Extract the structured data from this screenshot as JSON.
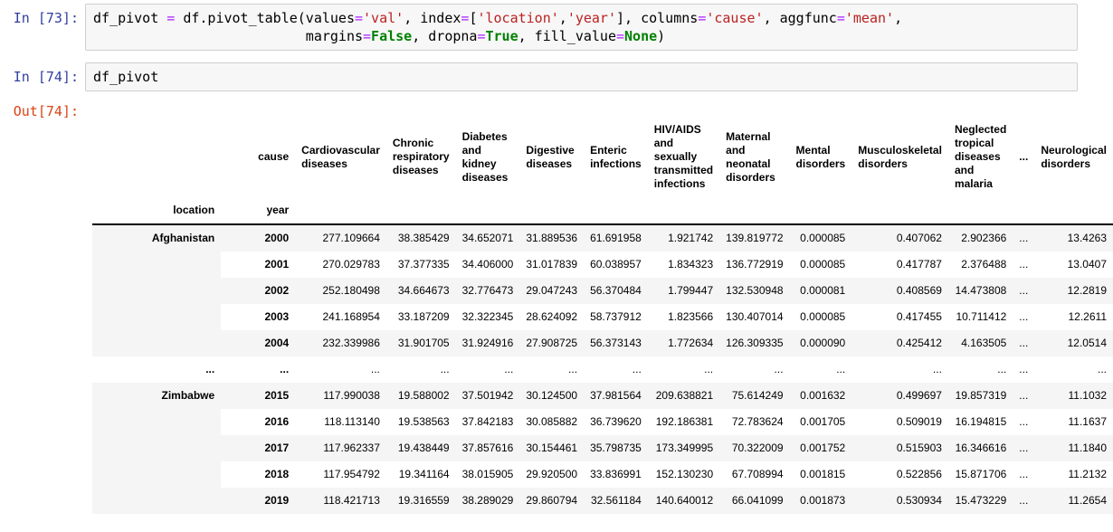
{
  "cells": {
    "in73": {
      "prompt": "In [73]:",
      "lines": [
        [
          {
            "text": "df_pivot ",
            "style": "plain"
          },
          {
            "text": "=",
            "style": "op"
          },
          {
            "text": " df.pivot_table(values",
            "style": "plain"
          },
          {
            "text": "=",
            "style": "op"
          },
          {
            "text": "'val'",
            "style": "str"
          },
          {
            "text": ", index",
            "style": "plain"
          },
          {
            "text": "=",
            "style": "op"
          },
          {
            "text": "[",
            "style": "plain"
          },
          {
            "text": "'location'",
            "style": "str"
          },
          {
            "text": ",",
            "style": "plain"
          },
          {
            "text": "'year'",
            "style": "str"
          },
          {
            "text": "], columns",
            "style": "plain"
          },
          {
            "text": "=",
            "style": "op"
          },
          {
            "text": "'cause'",
            "style": "str"
          },
          {
            "text": ", aggfunc",
            "style": "plain"
          },
          {
            "text": "=",
            "style": "op"
          },
          {
            "text": "'mean'",
            "style": "str"
          },
          {
            "text": ",",
            "style": "plain"
          }
        ],
        [
          {
            "text": "                          margins",
            "style": "plain"
          },
          {
            "text": "=",
            "style": "op"
          },
          {
            "text": "False",
            "style": "kw"
          },
          {
            "text": ", dropna",
            "style": "plain"
          },
          {
            "text": "=",
            "style": "op"
          },
          {
            "text": "True",
            "style": "kw"
          },
          {
            "text": ", fill_value",
            "style": "plain"
          },
          {
            "text": "=",
            "style": "op"
          },
          {
            "text": "None",
            "style": "kw"
          },
          {
            "text": ")",
            "style": "plain"
          }
        ]
      ]
    },
    "in74": {
      "prompt": "In [74]:",
      "lines": [
        [
          {
            "text": "df_pivot",
            "style": "plain"
          }
        ]
      ]
    },
    "out74": {
      "prompt": "Out[74]:"
    }
  },
  "table": {
    "columns_axis_name": "cause",
    "index_names": [
      "location",
      "year"
    ],
    "columns": [
      "Cardiovascular diseases",
      "Chronic respiratory diseases",
      "Diabetes and kidney diseases",
      "Digestive diseases",
      "Enteric infections",
      "HIV/AIDS and sexually transmitted infections",
      "Maternal and neonatal disorders",
      "Mental disorders",
      "Musculoskeletal disorders",
      "Neglected tropical diseases and malaria",
      "...",
      "Neurological disorders"
    ],
    "row_groups": [
      {
        "location": "Afghanistan",
        "rows": [
          {
            "year": "2000",
            "values": [
              "277.109664",
              "38.385429",
              "34.652071",
              "31.889536",
              "61.691958",
              "1.921742",
              "139.819772",
              "0.000085",
              "0.407062",
              "2.902366",
              "...",
              "13.4263"
            ]
          },
          {
            "year": "2001",
            "values": [
              "270.029783",
              "37.377335",
              "34.406000",
              "31.017839",
              "60.038957",
              "1.834323",
              "136.772919",
              "0.000085",
              "0.417787",
              "2.376488",
              "...",
              "13.0407"
            ]
          },
          {
            "year": "2002",
            "values": [
              "252.180498",
              "34.664673",
              "32.776473",
              "29.047243",
              "56.370484",
              "1.799447",
              "132.530948",
              "0.000081",
              "0.408569",
              "14.473808",
              "...",
              "12.2819"
            ]
          },
          {
            "year": "2003",
            "values": [
              "241.168954",
              "33.187209",
              "32.322345",
              "28.624092",
              "58.737912",
              "1.823566",
              "130.407014",
              "0.000085",
              "0.417455",
              "10.711412",
              "...",
              "12.2611"
            ]
          },
          {
            "year": "2004",
            "values": [
              "232.339986",
              "31.901705",
              "31.924916",
              "27.908725",
              "56.373143",
              "1.772634",
              "126.309335",
              "0.000090",
              "0.425412",
              "4.163505",
              "...",
              "12.0514"
            ]
          }
        ]
      },
      {
        "location": "...",
        "rows": [
          {
            "year": "...",
            "values": [
              "...",
              "...",
              "...",
              "...",
              "...",
              "...",
              "...",
              "...",
              "...",
              "...",
              "...",
              "..."
            ]
          }
        ]
      },
      {
        "location": "Zimbabwe",
        "rows": [
          {
            "year": "2015",
            "values": [
              "117.990038",
              "19.588002",
              "37.501942",
              "30.124500",
              "37.981564",
              "209.638821",
              "75.614249",
              "0.001632",
              "0.499697",
              "19.857319",
              "...",
              "11.1032"
            ]
          },
          {
            "year": "2016",
            "values": [
              "118.113140",
              "19.538563",
              "37.842183",
              "30.085882",
              "36.739620",
              "192.186381",
              "72.783624",
              "0.001705",
              "0.509019",
              "16.194815",
              "...",
              "11.1637"
            ]
          },
          {
            "year": "2017",
            "values": [
              "117.962337",
              "19.438449",
              "37.857616",
              "30.154461",
              "35.798735",
              "173.349995",
              "70.322009",
              "0.001752",
              "0.515903",
              "16.346616",
              "...",
              "11.1840"
            ]
          },
          {
            "year": "2018",
            "values": [
              "117.954792",
              "19.341164",
              "38.015905",
              "29.920500",
              "33.836991",
              "152.130230",
              "67.708994",
              "0.001815",
              "0.522856",
              "15.871706",
              "...",
              "11.2132"
            ]
          },
          {
            "year": "2019",
            "values": [
              "118.421713",
              "19.316559",
              "38.289029",
              "29.860794",
              "32.561184",
              "140.640012",
              "66.041099",
              "0.001873",
              "0.530934",
              "15.473229",
              "...",
              "11.2654"
            ]
          }
        ]
      }
    ]
  },
  "colors": {
    "prompt_in": "#303F9F",
    "prompt_out": "#D84315",
    "code_operator": "#AA22FF",
    "code_string": "#BA2121",
    "code_keyword": "#008000",
    "input_bg": "#F7F7F7",
    "input_border": "#CFCFCF",
    "row_stripe": "#F5F5F5"
  }
}
